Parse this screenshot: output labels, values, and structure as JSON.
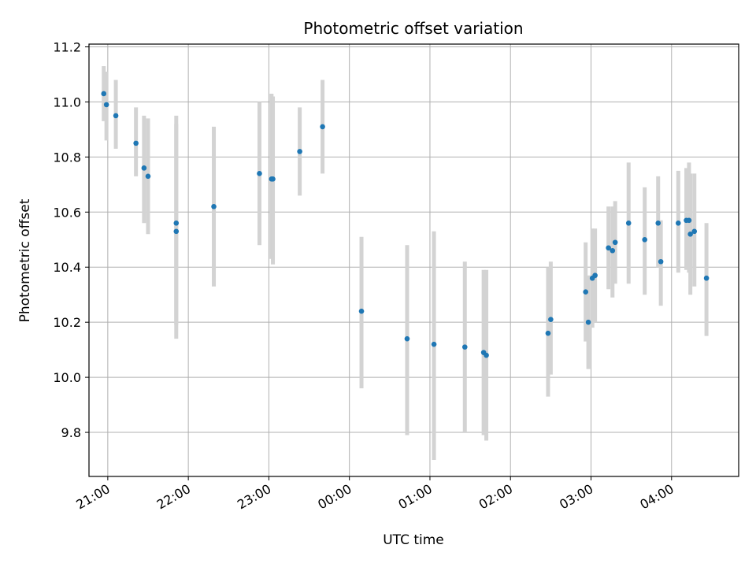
{
  "chart_data": {
    "type": "scatter",
    "title": "Photometric offset variation",
    "xlabel": "UTC time",
    "ylabel": "Photometric offset",
    "x_axis": {
      "kind": "time",
      "range": [
        "20:46",
        "04:50"
      ],
      "ticks": [
        {
          "time": "21:00",
          "label": "21:00"
        },
        {
          "time": "22:00",
          "label": "22:00"
        },
        {
          "time": "23:00",
          "label": "23:00"
        },
        {
          "time": "00:00",
          "label": "00:00"
        },
        {
          "time": "01:00",
          "label": "01:00"
        },
        {
          "time": "02:00",
          "label": "02:00"
        },
        {
          "time": "03:00",
          "label": "03:00"
        },
        {
          "time": "04:00",
          "label": "04:00"
        }
      ]
    },
    "y_axis": {
      "range": [
        9.64,
        11.21
      ],
      "ticks": [
        "9.8",
        "10.0",
        "10.2",
        "10.4",
        "10.6",
        "10.8",
        "11.0",
        "11.2"
      ]
    },
    "grid": true,
    "colors": {
      "point": "#1f77b4",
      "error_bar": "#d3d3d3",
      "grid": "#b0b0b0"
    },
    "series": [
      {
        "points": [
          {
            "t": "20:57",
            "y": 11.03,
            "low": 10.93,
            "high": 11.13
          },
          {
            "t": "20:59",
            "y": 10.99,
            "low": 10.86,
            "high": 11.11
          },
          {
            "t": "21:06",
            "y": 10.95,
            "low": 10.83,
            "high": 11.08
          },
          {
            "t": "21:21",
            "y": 10.85,
            "low": 10.73,
            "high": 10.98
          },
          {
            "t": "21:27",
            "y": 10.76,
            "low": 10.56,
            "high": 10.95
          },
          {
            "t": "21:30",
            "y": 10.73,
            "low": 10.52,
            "high": 10.94
          },
          {
            "t": "21:51",
            "y": 10.56,
            "low": 10.19,
            "high": 10.95
          },
          {
            "t": "21:51",
            "y": 10.53,
            "low": 10.14,
            "high": 10.92
          },
          {
            "t": "22:19",
            "y": 10.62,
            "low": 10.33,
            "high": 10.91
          },
          {
            "t": "22:53",
            "y": 10.74,
            "low": 10.48,
            "high": 11.0
          },
          {
            "t": "23:02",
            "y": 10.72,
            "low": 10.43,
            "high": 11.03
          },
          {
            "t": "23:03",
            "y": 10.72,
            "low": 10.41,
            "high": 11.02
          },
          {
            "t": "23:23",
            "y": 10.82,
            "low": 10.66,
            "high": 10.98
          },
          {
            "t": "23:40",
            "y": 10.91,
            "low": 10.74,
            "high": 11.08
          },
          {
            "t": "00:09",
            "y": 10.24,
            "low": 9.96,
            "high": 10.51
          },
          {
            "t": "00:43",
            "y": 10.14,
            "low": 9.79,
            "high": 10.48
          },
          {
            "t": "01:03",
            "y": 10.12,
            "low": 9.7,
            "high": 10.53
          },
          {
            "t": "01:26",
            "y": 10.11,
            "low": 9.8,
            "high": 10.42
          },
          {
            "t": "01:40",
            "y": 10.09,
            "low": 9.79,
            "high": 10.39
          },
          {
            "t": "01:42",
            "y": 10.08,
            "low": 9.77,
            "high": 10.39
          },
          {
            "t": "02:28",
            "y": 10.16,
            "low": 9.93,
            "high": 10.4
          },
          {
            "t": "02:30",
            "y": 10.21,
            "low": 10.01,
            "high": 10.42
          },
          {
            "t": "02:56",
            "y": 10.31,
            "low": 10.13,
            "high": 10.49
          },
          {
            "t": "02:58",
            "y": 10.2,
            "low": 10.03,
            "high": 10.37
          },
          {
            "t": "03:01",
            "y": 10.36,
            "low": 10.18,
            "high": 10.54
          },
          {
            "t": "03:03",
            "y": 10.37,
            "low": 10.2,
            "high": 10.54
          },
          {
            "t": "03:13",
            "y": 10.47,
            "low": 10.32,
            "high": 10.62
          },
          {
            "t": "03:16",
            "y": 10.46,
            "low": 10.29,
            "high": 10.62
          },
          {
            "t": "03:18",
            "y": 10.49,
            "low": 10.34,
            "high": 10.64
          },
          {
            "t": "03:28",
            "y": 10.56,
            "low": 10.34,
            "high": 10.78
          },
          {
            "t": "03:40",
            "y": 10.5,
            "low": 10.3,
            "high": 10.69
          },
          {
            "t": "03:50",
            "y": 10.56,
            "low": 10.4,
            "high": 10.73
          },
          {
            "t": "03:52",
            "y": 10.42,
            "low": 10.26,
            "high": 10.57
          },
          {
            "t": "04:05",
            "y": 10.56,
            "low": 10.38,
            "high": 10.75
          },
          {
            "t": "04:11",
            "y": 10.57,
            "low": 10.39,
            "high": 10.76
          },
          {
            "t": "04:13",
            "y": 10.57,
            "low": 10.38,
            "high": 10.78
          },
          {
            "t": "04:14",
            "y": 10.52,
            "low": 10.3,
            "high": 10.74
          },
          {
            "t": "04:17",
            "y": 10.53,
            "low": 10.33,
            "high": 10.74
          },
          {
            "t": "04:26",
            "y": 10.36,
            "low": 10.15,
            "high": 10.56
          }
        ]
      }
    ]
  }
}
